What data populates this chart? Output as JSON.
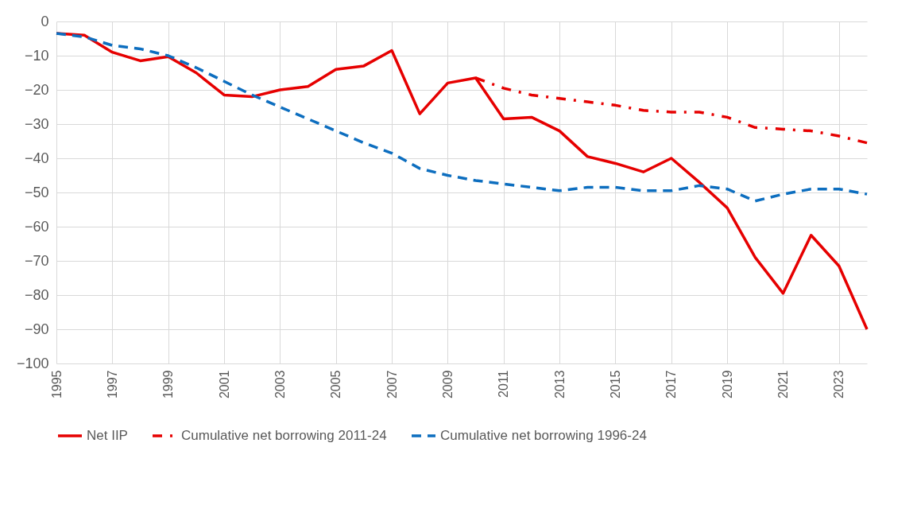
{
  "chart_data": {
    "type": "line",
    "x": [
      1995,
      1996,
      1997,
      1998,
      1999,
      2000,
      2001,
      2002,
      2003,
      2004,
      2005,
      2006,
      2007,
      2008,
      2009,
      2010,
      2011,
      2012,
      2013,
      2014,
      2015,
      2016,
      2017,
      2018,
      2019,
      2020,
      2021,
      2022,
      2023,
      2024
    ],
    "xlim": [
      1995,
      2024
    ],
    "xticks": [
      1995,
      1997,
      1999,
      2001,
      2003,
      2005,
      2007,
      2009,
      2011,
      2013,
      2015,
      2017,
      2019,
      2021,
      2023
    ],
    "ylim": [
      -100,
      0
    ],
    "yticks": [
      -100,
      -90,
      -80,
      -70,
      -60,
      -50,
      -40,
      -30,
      -20,
      -10,
      0
    ],
    "grid": true,
    "legend": "bottom",
    "marker": "none",
    "series": [
      {
        "name": "Net IIP",
        "color": "#e60000",
        "line_style": "solid",
        "values": [
          -3.5,
          -4,
          -9,
          -11.5,
          -10.3,
          -15,
          -21.5,
          -22,
          -20,
          -19,
          -14,
          -13,
          -8.5,
          -27,
          -18,
          -16.5,
          -28.5,
          -28,
          -32,
          -39.5,
          -41.5,
          -44,
          -40,
          -47,
          -54.5,
          -69,
          -79.5,
          -62.5,
          -71.5,
          -90
        ]
      },
      {
        "name": "Cumulative net borrowing 2011-24",
        "color": "#e60000",
        "line_style": "dashdot",
        "x": [
          2010,
          2011,
          2012,
          2013,
          2014,
          2015,
          2016,
          2017,
          2018,
          2019,
          2020,
          2021,
          2022,
          2023,
          2024
        ],
        "values": [
          -16.5,
          -19.5,
          -21.5,
          -22.5,
          -23.5,
          -24.5,
          -26,
          -26.5,
          -26.5,
          -28,
          -31,
          -31.5,
          -32,
          -33.5,
          -35.5
        ]
      },
      {
        "name": "Cumulative net borrowing 1996-24",
        "color": "#0d6ebf",
        "line_style": "dashed",
        "values": [
          -3.5,
          -4.5,
          -7,
          -8,
          -10,
          -13.5,
          -17.5,
          -21.5,
          -25,
          -28.5,
          -32,
          -35.5,
          -38.5,
          -43,
          -45,
          -46.5,
          -47.5,
          -48.5,
          -49.5,
          -48.5,
          -48.5,
          -49.5,
          -49.5,
          -48,
          -49,
          -52.5,
          -50.5,
          -49,
          -49,
          -50.5
        ]
      }
    ]
  }
}
